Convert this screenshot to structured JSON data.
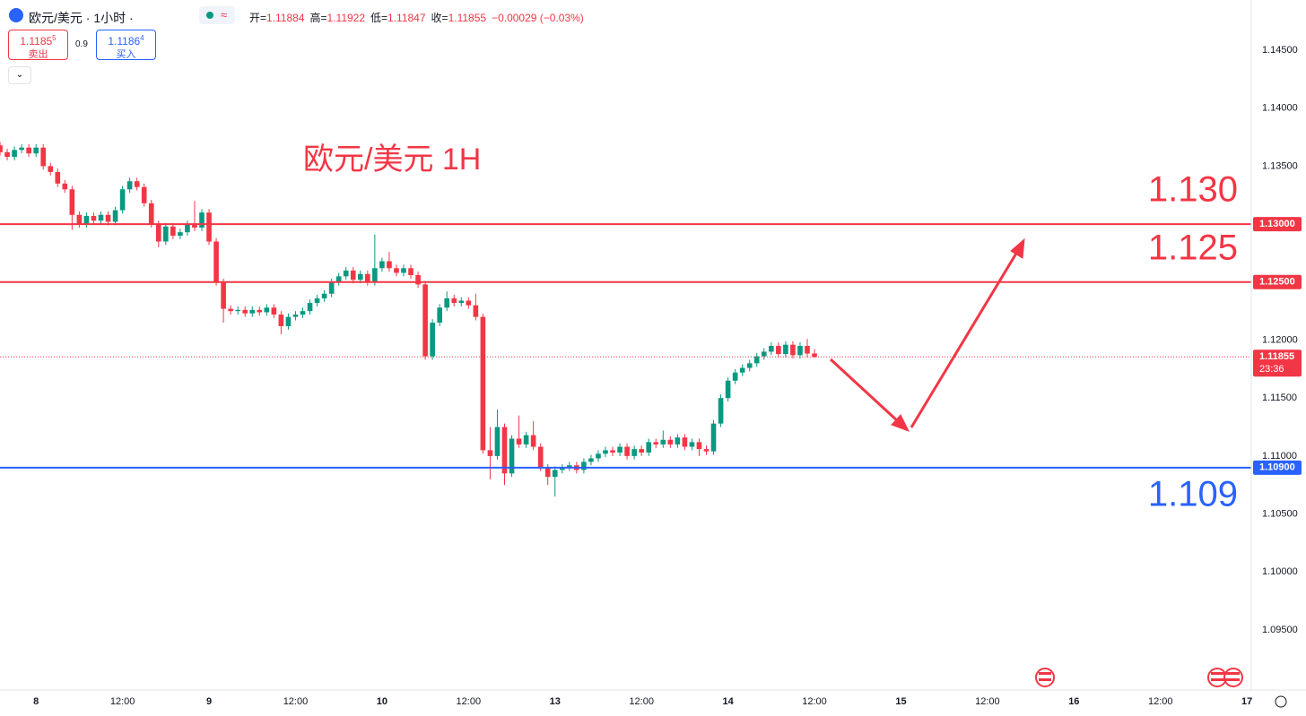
{
  "header": {
    "symbol": "欧元/美元 · 1小时 ·",
    "ohlc": [
      {
        "name": "开=",
        "value": "1.11884"
      },
      {
        "name": "高=",
        "value": "1.11922"
      },
      {
        "name": "低=",
        "value": "1.11847"
      },
      {
        "name": "收=",
        "value": "1.11855"
      }
    ],
    "change": "−0.00029 (−0.03%)"
  },
  "trade": {
    "sell_price": "1.1185",
    "sell_pip": "5",
    "sell_label": "卖出",
    "spread": "0.9",
    "buy_price": "1.1186",
    "buy_pip": "4",
    "buy_label": "买入"
  },
  "chart_data": {
    "type": "candlestick",
    "title": "欧元/美元 1H",
    "up_color": "#089981",
    "down_color": "#f23645",
    "x": [
      -5,
      -4,
      -3,
      -2,
      -1,
      0,
      1,
      2,
      3,
      4,
      5,
      6,
      7,
      8,
      9,
      10,
      11,
      12,
      13,
      14,
      15,
      16,
      17,
      18,
      19,
      20,
      21,
      22,
      23,
      24,
      25,
      26,
      27,
      28,
      29,
      30,
      31,
      32,
      33,
      34,
      35,
      36,
      37,
      38,
      39,
      40,
      41,
      42,
      43,
      44,
      45,
      46,
      47,
      48,
      49,
      50,
      51,
      52,
      53,
      54,
      55,
      56,
      57,
      58,
      59,
      60,
      61,
      62,
      63,
      64,
      65,
      66,
      67,
      68,
      69,
      70,
      71,
      72,
      73,
      74,
      75,
      76,
      77,
      78,
      79,
      80,
      81,
      82,
      83,
      84,
      85,
      86,
      87,
      88,
      89,
      90,
      91,
      92,
      93,
      94,
      95,
      96,
      97,
      98,
      99,
      100,
      101,
      102,
      103,
      104,
      105,
      106,
      107,
      108
    ],
    "open": [
      1.1368,
      1.1362,
      1.1358,
      1.1364,
      1.1366,
      1.1361,
      1.1366,
      1.135,
      1.1345,
      1.1335,
      1.133,
      1.1308,
      1.13,
      1.1307,
      1.1303,
      1.1308,
      1.1302,
      1.1312,
      1.133,
      1.1337,
      1.1332,
      1.1318,
      1.13,
      1.1285,
      1.1298,
      1.129,
      1.1293,
      1.13,
      1.1297,
      1.131,
      1.1285,
      1.125,
      1.1227,
      1.1225,
      1.1226,
      1.1223,
      1.1226,
      1.1224,
      1.1228,
      1.1222,
      1.1212,
      1.122,
      1.1222,
      1.1225,
      1.1232,
      1.1236,
      1.124,
      1.125,
      1.1255,
      1.126,
      1.1252,
      1.1257,
      1.125,
      1.1262,
      1.1268,
      1.1262,
      1.1258,
      1.1262,
      1.1256,
      1.1248,
      1.1186,
      1.1215,
      1.1228,
      1.1236,
      1.1232,
      1.1234,
      1.123,
      1.122,
      1.1105,
      1.11,
      1.1125,
      1.1085,
      1.1115,
      1.111,
      1.1118,
      1.1108,
      1.109,
      1.1082,
      1.1088,
      1.109,
      1.1092,
      1.1088,
      1.1095,
      1.1098,
      1.1102,
      1.1105,
      1.1103,
      1.1108,
      1.11,
      1.1106,
      1.1103,
      1.1112,
      1.111,
      1.1114,
      1.111,
      1.1116,
      1.1108,
      1.1112,
      1.1106,
      1.1104,
      1.1128,
      1.115,
      1.1165,
      1.1172,
      1.1176,
      1.118,
      1.1186,
      1.119,
      1.1195,
      1.1188,
      1.1196,
      1.1187,
      1.1195,
      1.11884
    ],
    "high": [
      1.1371,
      1.1365,
      1.1367,
      1.1369,
      1.1369,
      1.1369,
      1.1369,
      1.1353,
      1.1348,
      1.1338,
      1.1333,
      1.1311,
      1.131,
      1.131,
      1.1311,
      1.1311,
      1.1315,
      1.1333,
      1.134,
      1.134,
      1.1335,
      1.1321,
      1.1303,
      1.1301,
      1.1301,
      1.1296,
      1.1303,
      1.132,
      1.1313,
      1.1313,
      1.1288,
      1.1253,
      1.123,
      1.1229,
      1.1229,
      1.1229,
      1.1229,
      1.1231,
      1.1231,
      1.1225,
      1.1223,
      1.1225,
      1.1228,
      1.1235,
      1.1239,
      1.1243,
      1.1253,
      1.1258,
      1.1263,
      1.1263,
      1.126,
      1.126,
      1.1291,
      1.1271,
      1.1276,
      1.1265,
      1.1265,
      1.1265,
      1.1259,
      1.1251,
      1.1218,
      1.1231,
      1.1242,
      1.1239,
      1.1237,
      1.1237,
      1.124,
      1.1223,
      1.1125,
      1.114,
      1.1128,
      1.1118,
      1.1135,
      1.1121,
      1.113,
      1.1111,
      1.1093,
      1.1091,
      1.1093,
      1.1095,
      1.1095,
      1.1098,
      1.1101,
      1.1105,
      1.1108,
      1.1108,
      1.1111,
      1.1111,
      1.1109,
      1.1109,
      1.1115,
      1.1115,
      1.1122,
      1.1117,
      1.1119,
      1.1119,
      1.1115,
      1.1115,
      1.1109,
      1.1131,
      1.1153,
      1.1168,
      1.1175,
      1.1179,
      1.1183,
      1.1189,
      1.1193,
      1.1198,
      1.1198,
      1.1199,
      1.1199,
      1.1198,
      1.1201,
      1.11922
    ],
    "low": [
      1.1359,
      1.1355,
      1.1355,
      1.1361,
      1.1358,
      1.1358,
      1.1347,
      1.1342,
      1.1332,
      1.1327,
      1.1295,
      1.1297,
      1.1297,
      1.13,
      1.13,
      1.1299,
      1.1299,
      1.1309,
      1.1327,
      1.1329,
      1.1315,
      1.1297,
      1.128,
      1.1282,
      1.1287,
      1.1287,
      1.129,
      1.1294,
      1.1294,
      1.1282,
      1.1247,
      1.1215,
      1.1222,
      1.1222,
      1.122,
      1.122,
      1.1221,
      1.1221,
      1.1219,
      1.1205,
      1.1209,
      1.1217,
      1.1219,
      1.1222,
      1.1229,
      1.1233,
      1.1237,
      1.1247,
      1.1252,
      1.1249,
      1.1249,
      1.1247,
      1.1247,
      1.1259,
      1.1259,
      1.1255,
      1.1255,
      1.1253,
      1.1245,
      1.1183,
      1.1183,
      1.1212,
      1.1225,
      1.1229,
      1.1229,
      1.1227,
      1.1217,
      1.1102,
      1.108,
      1.1097,
      1.1075,
      1.1082,
      1.1107,
      1.1107,
      1.1105,
      1.1087,
      1.1075,
      1.1065,
      1.1085,
      1.1087,
      1.1085,
      1.1085,
      1.1092,
      1.1095,
      1.1099,
      1.11,
      1.11,
      1.1097,
      1.1097,
      1.11,
      1.11,
      1.1107,
      1.1107,
      1.1107,
      1.1107,
      1.1105,
      1.1105,
      1.11,
      1.1101,
      1.1101,
      1.1125,
      1.1147,
      1.1162,
      1.1169,
      1.1173,
      1.1177,
      1.1183,
      1.1187,
      1.1185,
      1.1185,
      1.1184,
      1.1184,
      1.1185,
      1.11847
    ],
    "close": [
      1.1362,
      1.1358,
      1.1364,
      1.1366,
      1.1361,
      1.1366,
      1.135,
      1.1345,
      1.1335,
      1.133,
      1.1308,
      1.13,
      1.1307,
      1.1303,
      1.1308,
      1.1302,
      1.1312,
      1.133,
      1.1337,
      1.1332,
      1.1318,
      1.13,
      1.1285,
      1.1298,
      1.129,
      1.1293,
      1.13,
      1.1297,
      1.131,
      1.1285,
      1.125,
      1.1227,
      1.1225,
      1.1226,
      1.1223,
      1.1226,
      1.1224,
      1.1228,
      1.1222,
      1.1212,
      1.122,
      1.1222,
      1.1225,
      1.1232,
      1.1236,
      1.124,
      1.125,
      1.1255,
      1.126,
      1.1252,
      1.1257,
      1.125,
      1.1262,
      1.1268,
      1.1262,
      1.1258,
      1.1262,
      1.1256,
      1.1248,
      1.1186,
      1.1215,
      1.1228,
      1.1236,
      1.1232,
      1.1234,
      1.123,
      1.122,
      1.1105,
      1.11,
      1.1125,
      1.1085,
      1.1115,
      1.111,
      1.1118,
      1.1108,
      1.109,
      1.1082,
      1.1088,
      1.109,
      1.1092,
      1.1088,
      1.1095,
      1.1098,
      1.1102,
      1.1105,
      1.1103,
      1.1108,
      1.11,
      1.1106,
      1.1103,
      1.1112,
      1.111,
      1.1114,
      1.111,
      1.1116,
      1.1108,
      1.1112,
      1.1106,
      1.1104,
      1.1128,
      1.115,
      1.1165,
      1.1172,
      1.1176,
      1.118,
      1.1186,
      1.119,
      1.1195,
      1.1188,
      1.1196,
      1.1187,
      1.1195,
      1.11884,
      1.11855
    ],
    "xlim": [
      -5,
      168.6
    ],
    "ylim": [
      1.08982,
      1.14933
    ],
    "xticks": [
      {
        "value": 0,
        "label": "8"
      },
      {
        "value": 12,
        "label": "12:00"
      },
      {
        "value": 24,
        "label": "9"
      },
      {
        "value": 36,
        "label": "12:00"
      },
      {
        "value": 48,
        "label": "10"
      },
      {
        "value": 60,
        "label": "12:00"
      },
      {
        "value": 72,
        "label": "13"
      },
      {
        "value": 84,
        "label": "12:00"
      },
      {
        "value": 96,
        "label": "14"
      },
      {
        "value": 108,
        "label": "12:00"
      },
      {
        "value": 120,
        "label": "15"
      },
      {
        "value": 132,
        "label": "12:00"
      },
      {
        "value": 144,
        "label": "16"
      },
      {
        "value": 156,
        "label": "12:00"
      },
      {
        "value": 168,
        "label": "17"
      }
    ],
    "yticks": [
      {
        "value": 1.095,
        "label": "1.09500"
      },
      {
        "value": 1.1,
        "label": "1.10000"
      },
      {
        "value": 1.105,
        "label": "1.10500"
      },
      {
        "value": 1.11,
        "label": "1.11000"
      },
      {
        "value": 1.115,
        "label": "1.11500"
      },
      {
        "value": 1.12,
        "label": "1.12000"
      },
      {
        "value": 1.125,
        "label": "1.12500"
      },
      {
        "value": 1.13,
        "label": "1.13000"
      },
      {
        "value": 1.135,
        "label": "1.13500"
      },
      {
        "value": 1.14,
        "label": "1.14000"
      },
      {
        "value": 1.145,
        "label": "1.14500"
      }
    ],
    "levels": [
      {
        "value": 1.13,
        "label": "1.13000",
        "annotation": "1.130",
        "color": "#f23645"
      },
      {
        "value": 1.125,
        "label": "1.12500",
        "annotation": "1.125",
        "color": "#f23645"
      },
      {
        "value": 1.109,
        "label": "1.10900",
        "annotation": "1.109",
        "color": "#2962ff"
      }
    ],
    "last_price": {
      "label": "1.11855",
      "countdown": "23:36",
      "color": "#f23645"
    }
  }
}
